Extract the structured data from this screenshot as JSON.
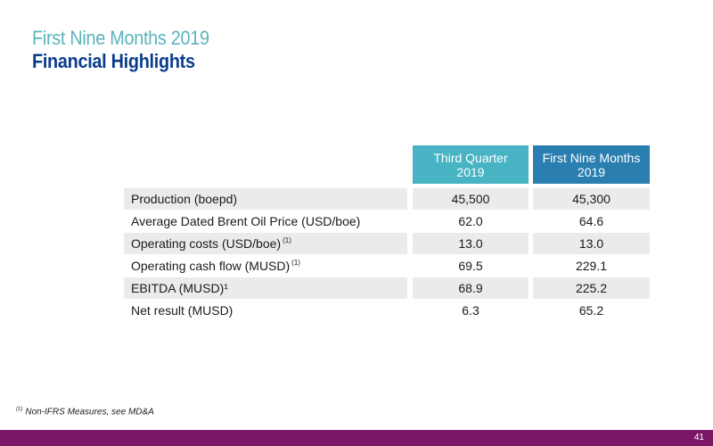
{
  "header": {
    "title": "First Nine Months 2019",
    "subtitle": "Financial Highlights"
  },
  "table": {
    "col_q3": {
      "line1": "Third Quarter",
      "line2": "2019"
    },
    "col_9m": {
      "line1": "First Nine Months",
      "line2": "2019"
    },
    "rows": [
      {
        "label": "Production (boepd)",
        "note": "",
        "q3": "45,500",
        "m9": "45,300"
      },
      {
        "label": "Average Dated Brent Oil Price (USD/boe)",
        "note": "",
        "q3": "62.0",
        "m9": "64.6"
      },
      {
        "label": "Operating costs (USD/boe)",
        "note": "(1)",
        "q3": "13.0",
        "m9": "13.0"
      },
      {
        "label": "Operating cash flow (MUSD)",
        "note": "(1)",
        "q3": "69.5",
        "m9": "229.1"
      },
      {
        "label": "EBITDA (MUSD)¹",
        "note": "",
        "q3": "68.9",
        "m9": "225.2"
      },
      {
        "label": "Net result (MUSD)",
        "note": "",
        "q3": "6.3",
        "m9": "65.2"
      }
    ]
  },
  "footnote": {
    "marker": "(1)",
    "text": "Non-IFRS Measures, see MD&A"
  },
  "footer": {
    "page_number": "41"
  },
  "colors": {
    "title": "#5ab4bb",
    "subtitle": "#0a3c8c",
    "header_q3": "#48b3c3",
    "header_9m": "#2a7fb0",
    "row_shade": "#ebebeb",
    "footer_bar": "#7b1866"
  }
}
